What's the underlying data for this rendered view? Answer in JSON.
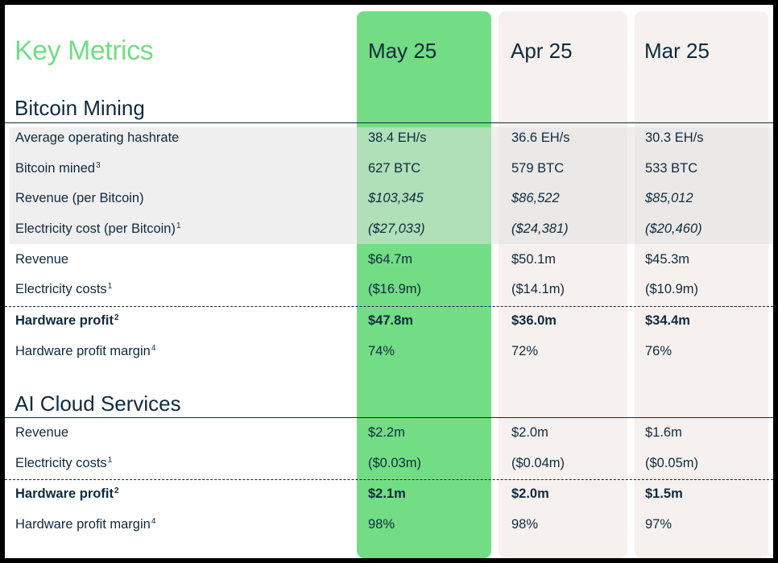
{
  "title": "Key Metrics",
  "columns": [
    "May 25",
    "Apr 25",
    "Mar 25"
  ],
  "sections": {
    "bitcoin": {
      "title": "Bitcoin Mining",
      "rows": [
        {
          "label": "Average operating hashrate",
          "sup": "",
          "values": [
            "38.4 EH/s",
            "36.6 EH/s",
            "30.3 EH/s"
          ]
        },
        {
          "label": "Bitcoin mined",
          "sup": "3",
          "values": [
            "627 BTC",
            "579 BTC",
            "533 BTC"
          ]
        },
        {
          "label": "Revenue (per Bitcoin)",
          "sup": "",
          "values": [
            "$103,345",
            "$86,522",
            "$85,012"
          ]
        },
        {
          "label": "Electricity cost (per Bitcoin)",
          "sup": "1",
          "values": [
            "($27,033)",
            "($24,381)",
            "($20,460)"
          ]
        },
        {
          "label": "Revenue",
          "sup": "",
          "values": [
            "$64.7m",
            "$50.1m",
            "$45.3m"
          ]
        },
        {
          "label": "Electricity costs",
          "sup": "1",
          "values": [
            "($16.9m)",
            "($14.1m)",
            "($10.9m)"
          ]
        },
        {
          "label": "Hardware profit",
          "sup": "2",
          "values": [
            "$47.8m",
            "$36.0m",
            "$34.4m"
          ]
        },
        {
          "label": "Hardware profit margin",
          "sup": "4",
          "values": [
            "74%",
            "72%",
            "76%"
          ]
        }
      ]
    },
    "ai": {
      "title": "AI Cloud Services",
      "rows": [
        {
          "label": "Revenue",
          "sup": "",
          "values": [
            "$2.2m",
            "$2.0m",
            "$1.6m"
          ]
        },
        {
          "label": "Electricity costs",
          "sup": "1",
          "values": [
            "($0.03m)",
            "($0.04m)",
            "($0.05m)"
          ]
        },
        {
          "label": "Hardware profit",
          "sup": "2",
          "values": [
            "$2.1m",
            "$2.0m",
            "$1.5m"
          ]
        },
        {
          "label": "Hardware profit margin",
          "sup": "4",
          "values": [
            "98%",
            "98%",
            "97%"
          ]
        }
      ]
    }
  },
  "colors": {
    "accent": "#72dd85",
    "text": "#0f2a3f",
    "column_bg": "#f6f1ee"
  }
}
